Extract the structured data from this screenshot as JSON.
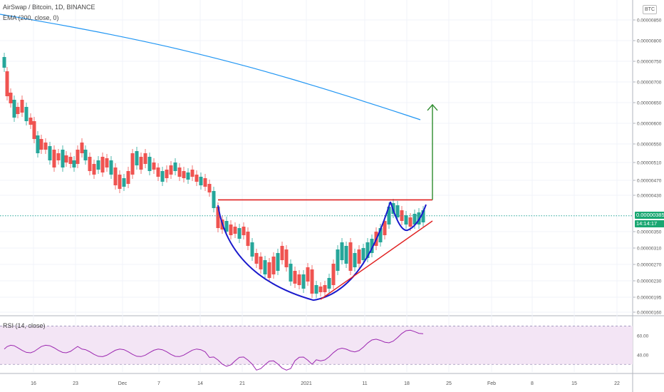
{
  "legend": {
    "title": "AirSwap / Bitcoin, 1D, BINANCE",
    "ema": "EMA (200, close, 0)",
    "rsi": "RSI (14, close)"
  },
  "badges": {
    "currency": "BTC",
    "last_price": "0.00000385",
    "countdown": "14:14:17"
  },
  "colors": {
    "up": "#26a69a",
    "down": "#ef5350",
    "ema": "#2196f3",
    "pattern_cup": "#1a1acc",
    "pattern_rim": "#e02020",
    "target_arrow": "#2e8b2e",
    "last_price_line": "#26a69a",
    "rsi_line": "#9c27b0",
    "rsi_band": "#f3e5f5"
  },
  "chart_data": [
    {
      "type": "candlestick",
      "title": "AirSwap / Bitcoin, 1D, BINANCE",
      "price_axis_ticks": [
        "0.00000850",
        "0.00000800",
        "0.00000750",
        "0.00000700",
        "0.00000650",
        "0.00000600",
        "0.00000550",
        "0.00000510",
        "0.00000470",
        "0.00000430",
        "0.00000350",
        "0.00000310",
        "0.00000270",
        "0.00000230",
        "0.00000195",
        "0.00000160"
      ],
      "time_axis_ticks": [
        "16",
        "23",
        "Dec",
        "7",
        "14",
        "21",
        "2021",
        "11",
        "18",
        "25",
        "Feb",
        "8",
        "15",
        "22"
      ],
      "last_price": 3.85e-06,
      "series": [
        {
          "name": "EMA (200, close, 0)",
          "type": "line",
          "y_start": 8.8e-06,
          "y_end": 6.2e-06
        }
      ],
      "annotations": [
        {
          "type": "cup",
          "bottom": 1.88e-06
        },
        {
          "type": "resistance",
          "level": 4.2e-06
        },
        {
          "type": "target",
          "level": 6.45e-06
        }
      ]
    },
    {
      "type": "line",
      "title": "RSI (14, close)",
      "y_ticks": [
        "60.00",
        "40.00"
      ],
      "ylim": [
        22,
        80
      ],
      "upper_band": 70,
      "lower_band": 30
    }
  ]
}
